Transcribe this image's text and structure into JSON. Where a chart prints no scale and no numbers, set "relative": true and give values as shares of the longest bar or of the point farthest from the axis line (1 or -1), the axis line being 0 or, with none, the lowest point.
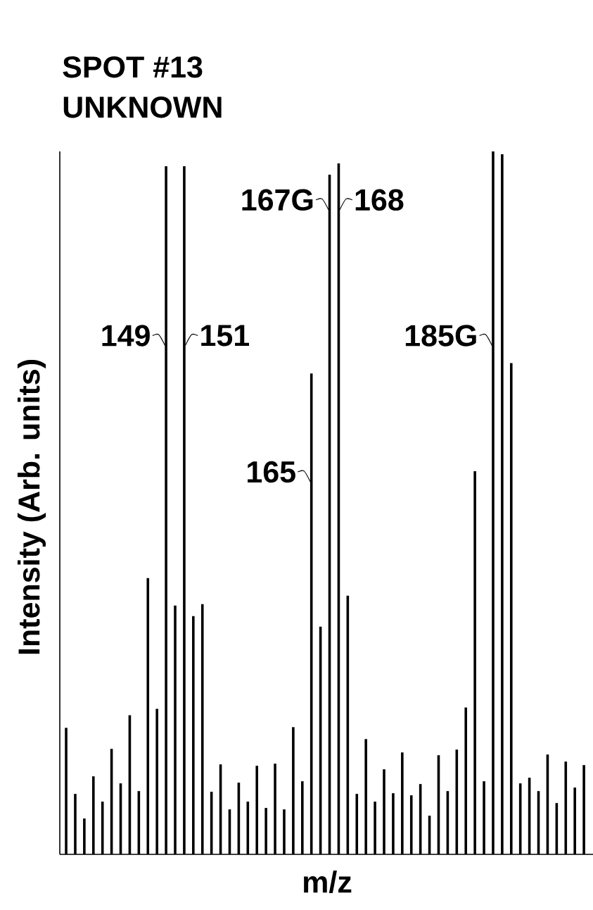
{
  "chart_data": {
    "type": "bar",
    "title": "SPOT #13",
    "subtitle": "UNKNOWN",
    "xlabel": "m/z",
    "ylabel": "Intensity (Arb. units)",
    "relative": true,
    "color": "#000000",
    "annotations": [
      "149",
      "151",
      "165",
      "167G",
      "168",
      "185G"
    ],
    "categories": [
      null,
      null,
      null,
      null,
      null,
      null,
      null,
      null,
      null,
      null,
      null,
      null,
      null,
      null,
      null,
      null,
      null,
      null,
      null,
      null,
      null,
      null,
      null,
      null,
      null,
      null,
      null,
      null,
      null,
      null,
      null,
      null,
      null,
      null,
      null,
      null,
      null,
      null,
      null,
      null,
      null,
      null,
      null,
      null,
      null,
      null,
      null,
      null,
      null,
      null,
      null,
      null,
      null,
      null,
      null,
      null,
      null,
      null
    ],
    "values": [
      0.18,
      0.086,
      0.051,
      0.111,
      0.075,
      0.15,
      0.101,
      0.198,
      0.09,
      0.393,
      0.207,
      0.979,
      0.354,
      0.979,
      0.339,
      0.356,
      0.089,
      0.128,
      0.064,
      0.102,
      0.075,
      0.126,
      0.066,
      0.129,
      0.064,
      0.181,
      0.104,
      0.684,
      0.324,
      0.967,
      0.983,
      0.368,
      0.086,
      0.164,
      0.075,
      0.121,
      0.087,
      0.145,
      0.084,
      0.1,
      0.055,
      0.141,
      0.09,
      0.149,
      0.209,
      0.545,
      0.104,
      1.0,
      0.996,
      0.699,
      0.101,
      0.109,
      0.09,
      0.142,
      0.073,
      0.132,
      0.095,
      0.127
    ]
  }
}
